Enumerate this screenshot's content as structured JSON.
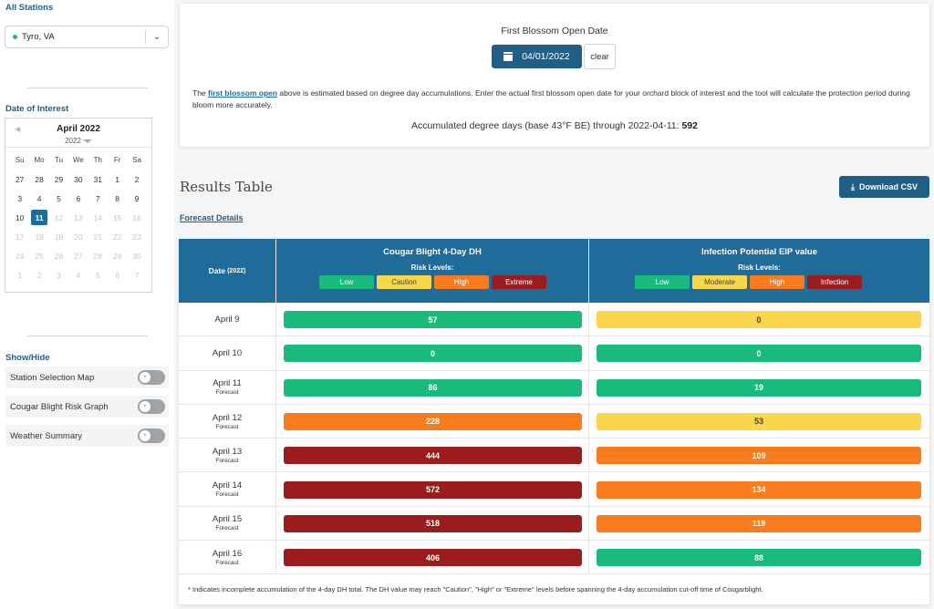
{
  "sidebar": {
    "stations_heading": "All Stations",
    "station_selected": "Tyro, VA",
    "date_heading": "Date of Interest",
    "calendar": {
      "month": "April 2022",
      "year": "2022",
      "weekdays": [
        "Su",
        "Mo",
        "Tu",
        "We",
        "Th",
        "Fr",
        "Sa"
      ],
      "weeks": [
        [
          {
            "d": "27",
            "s": "n"
          },
          {
            "d": "28",
            "s": "n"
          },
          {
            "d": "29",
            "s": "n"
          },
          {
            "d": "30",
            "s": "n"
          },
          {
            "d": "31",
            "s": "n"
          },
          {
            "d": "1",
            "s": "n"
          },
          {
            "d": "2",
            "s": "n"
          }
        ],
        [
          {
            "d": "3",
            "s": "n"
          },
          {
            "d": "4",
            "s": "n"
          },
          {
            "d": "5",
            "s": "n"
          },
          {
            "d": "6",
            "s": "n"
          },
          {
            "d": "7",
            "s": "n"
          },
          {
            "d": "8",
            "s": "n"
          },
          {
            "d": "9",
            "s": "n"
          }
        ],
        [
          {
            "d": "10",
            "s": "n"
          },
          {
            "d": "11",
            "s": "sel"
          },
          {
            "d": "12",
            "s": "m"
          },
          {
            "d": "13",
            "s": "m"
          },
          {
            "d": "14",
            "s": "m"
          },
          {
            "d": "15",
            "s": "m"
          },
          {
            "d": "16",
            "s": "m"
          }
        ],
        [
          {
            "d": "17",
            "s": "m"
          },
          {
            "d": "18",
            "s": "m"
          },
          {
            "d": "19",
            "s": "m"
          },
          {
            "d": "20",
            "s": "m"
          },
          {
            "d": "21",
            "s": "m"
          },
          {
            "d": "22",
            "s": "m"
          },
          {
            "d": "23",
            "s": "m"
          }
        ],
        [
          {
            "d": "24",
            "s": "m"
          },
          {
            "d": "25",
            "s": "m"
          },
          {
            "d": "26",
            "s": "m"
          },
          {
            "d": "27",
            "s": "m"
          },
          {
            "d": "28",
            "s": "m"
          },
          {
            "d": "29",
            "s": "m"
          },
          {
            "d": "30",
            "s": "m"
          }
        ],
        [
          {
            "d": "1",
            "s": "m"
          },
          {
            "d": "2",
            "s": "m"
          },
          {
            "d": "3",
            "s": "m"
          },
          {
            "d": "4",
            "s": "m"
          },
          {
            "d": "5",
            "s": "m"
          },
          {
            "d": "6",
            "s": "m"
          },
          {
            "d": "7",
            "s": "m"
          }
        ]
      ]
    },
    "showhide_heading": "Show/Hide",
    "toggles": [
      {
        "label": "Station Selection Map",
        "knob": "×"
      },
      {
        "label": "Cougar Blight Risk Graph",
        "knob": "×"
      },
      {
        "label": "Weather Summary",
        "knob": "×"
      }
    ]
  },
  "blossom": {
    "title": "First Blossom Open Date",
    "date_value": "04/01/2022",
    "clear_label": "clear",
    "desc_prefix": "The ",
    "desc_link": "first blossom open",
    "desc_suffix": " above is estimated based on degree day accumulations. Enter the actual first blossom open date for your orchard block of interest and the tool will calculate the protection period during bloom more accurately.",
    "accum_text": "Accumulated degree days (base 43°F BE) through 2022-04-11: ",
    "accum_value": "592"
  },
  "results": {
    "title": "Results Table",
    "download_label": "Download CSV",
    "forecast_link": "Forecast Details",
    "colors": {
      "low": "#18bb7c",
      "caution": "#f9d64a",
      "high": "#f97b1b",
      "extreme": "#9b1c1c"
    },
    "header": {
      "date_label": "Date",
      "date_year": "(2022)",
      "cb_title": "Cougar Blight 4-Day DH",
      "cb_risk": "Risk Levels:",
      "cb_levels": [
        {
          "label": "Low",
          "cls": "c-low"
        },
        {
          "label": "Caution",
          "cls": "c-caution"
        },
        {
          "label": "High",
          "cls": "c-high"
        },
        {
          "label": "Extreme",
          "cls": "c-extreme"
        }
      ],
      "ip_title": "Infection Potential EIP value",
      "ip_risk": "Risk Levels:",
      "ip_levels": [
        {
          "label": "Low",
          "cls": "c-low"
        },
        {
          "label": "Moderate",
          "cls": "c-moderate"
        },
        {
          "label": "High",
          "cls": "c-high"
        },
        {
          "label": "Infection",
          "cls": "c-infection"
        }
      ]
    },
    "rows": [
      {
        "date": "April 9",
        "forecast": "",
        "cb": "57",
        "cb_cls": "c-low",
        "ip": "0",
        "ip_cls": "c-moderate"
      },
      {
        "date": "April 10",
        "forecast": "",
        "cb": "0",
        "cb_cls": "c-low",
        "ip": "0",
        "ip_cls": "c-low"
      },
      {
        "date": "April 11",
        "forecast": "Forecast",
        "cb": "86",
        "cb_cls": "c-low",
        "ip": "19",
        "ip_cls": "c-low"
      },
      {
        "date": "April 12",
        "forecast": "Forecast",
        "cb": "228",
        "cb_cls": "c-high",
        "ip": "53",
        "ip_cls": "c-moderate"
      },
      {
        "date": "April 13",
        "forecast": "Forecast",
        "cb": "444",
        "cb_cls": "c-extreme",
        "ip": "109",
        "ip_cls": "c-high"
      },
      {
        "date": "April 14",
        "forecast": "Forecast",
        "cb": "572",
        "cb_cls": "c-extreme",
        "ip": "134",
        "ip_cls": "c-high"
      },
      {
        "date": "April 15",
        "forecast": "Forecast",
        "cb": "518",
        "cb_cls": "c-extreme",
        "ip": "119",
        "ip_cls": "c-high"
      },
      {
        "date": "April 16",
        "forecast": "Forecast",
        "cb": "406",
        "cb_cls": "c-extreme",
        "ip": "88",
        "ip_cls": "c-low"
      }
    ],
    "footnote": "* Indicates incomplete accumulation of the 4-day DH total. The DH value may reach \"Caution\", \"High\" or \"Extreme\" levels before spanning the 4-day accumulation cut-off time of Cougarblight."
  }
}
